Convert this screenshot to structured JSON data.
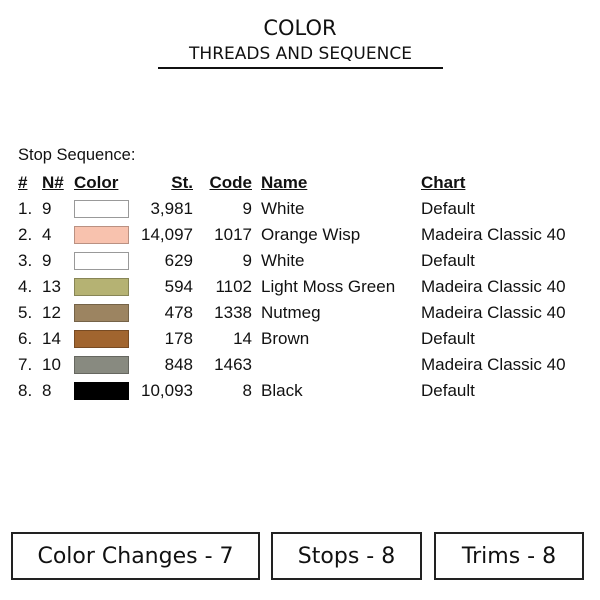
{
  "header": {
    "title": "COLOR",
    "subtitle": "THREADS AND SEQUENCE"
  },
  "stop_sequence_label": "Stop Sequence:",
  "columns": {
    "num": "#",
    "n": "N#",
    "color": "Color",
    "st": "St.",
    "code": "Code",
    "name": "Name",
    "chart": "Chart"
  },
  "rows": [
    {
      "num": "1.",
      "n": "9",
      "color": "#ffffff",
      "st": "3,981",
      "code": "9",
      "name": "White",
      "chart": "Default"
    },
    {
      "num": "2.",
      "n": "4",
      "color": "#f8c2ae",
      "st": "14,097",
      "code": "1017",
      "name": "Orange Wisp",
      "chart": "Madeira Classic 40"
    },
    {
      "num": "3.",
      "n": "9",
      "color": "#ffffff",
      "st": "629",
      "code": "9",
      "name": "White",
      "chart": "Default"
    },
    {
      "num": "4.",
      "n": "13",
      "color": "#b5b273",
      "st": "594",
      "code": "1102",
      "name": "Light Moss Green",
      "chart": "Madeira Classic 40"
    },
    {
      "num": "5.",
      "n": "12",
      "color": "#9c8461",
      "st": "478",
      "code": "1338",
      "name": "Nutmeg",
      "chart": "Madeira Classic 40"
    },
    {
      "num": "6.",
      "n": "14",
      "color": "#a1652f",
      "st": "178",
      "code": "14",
      "name": "Brown",
      "chart": "Default"
    },
    {
      "num": "7.",
      "n": "10",
      "color": "#888a80",
      "st": "848",
      "code": "1463",
      "name": "",
      "chart": "Madeira Classic 40"
    },
    {
      "num": "8.",
      "n": "8",
      "color": "#000000",
      "st": "10,093",
      "code": "8",
      "name": "Black",
      "chart": "Default"
    }
  ],
  "summary": {
    "color_changes": "Color Changes - 7",
    "stops": "Stops - 8",
    "trims": "Trims - 8"
  }
}
